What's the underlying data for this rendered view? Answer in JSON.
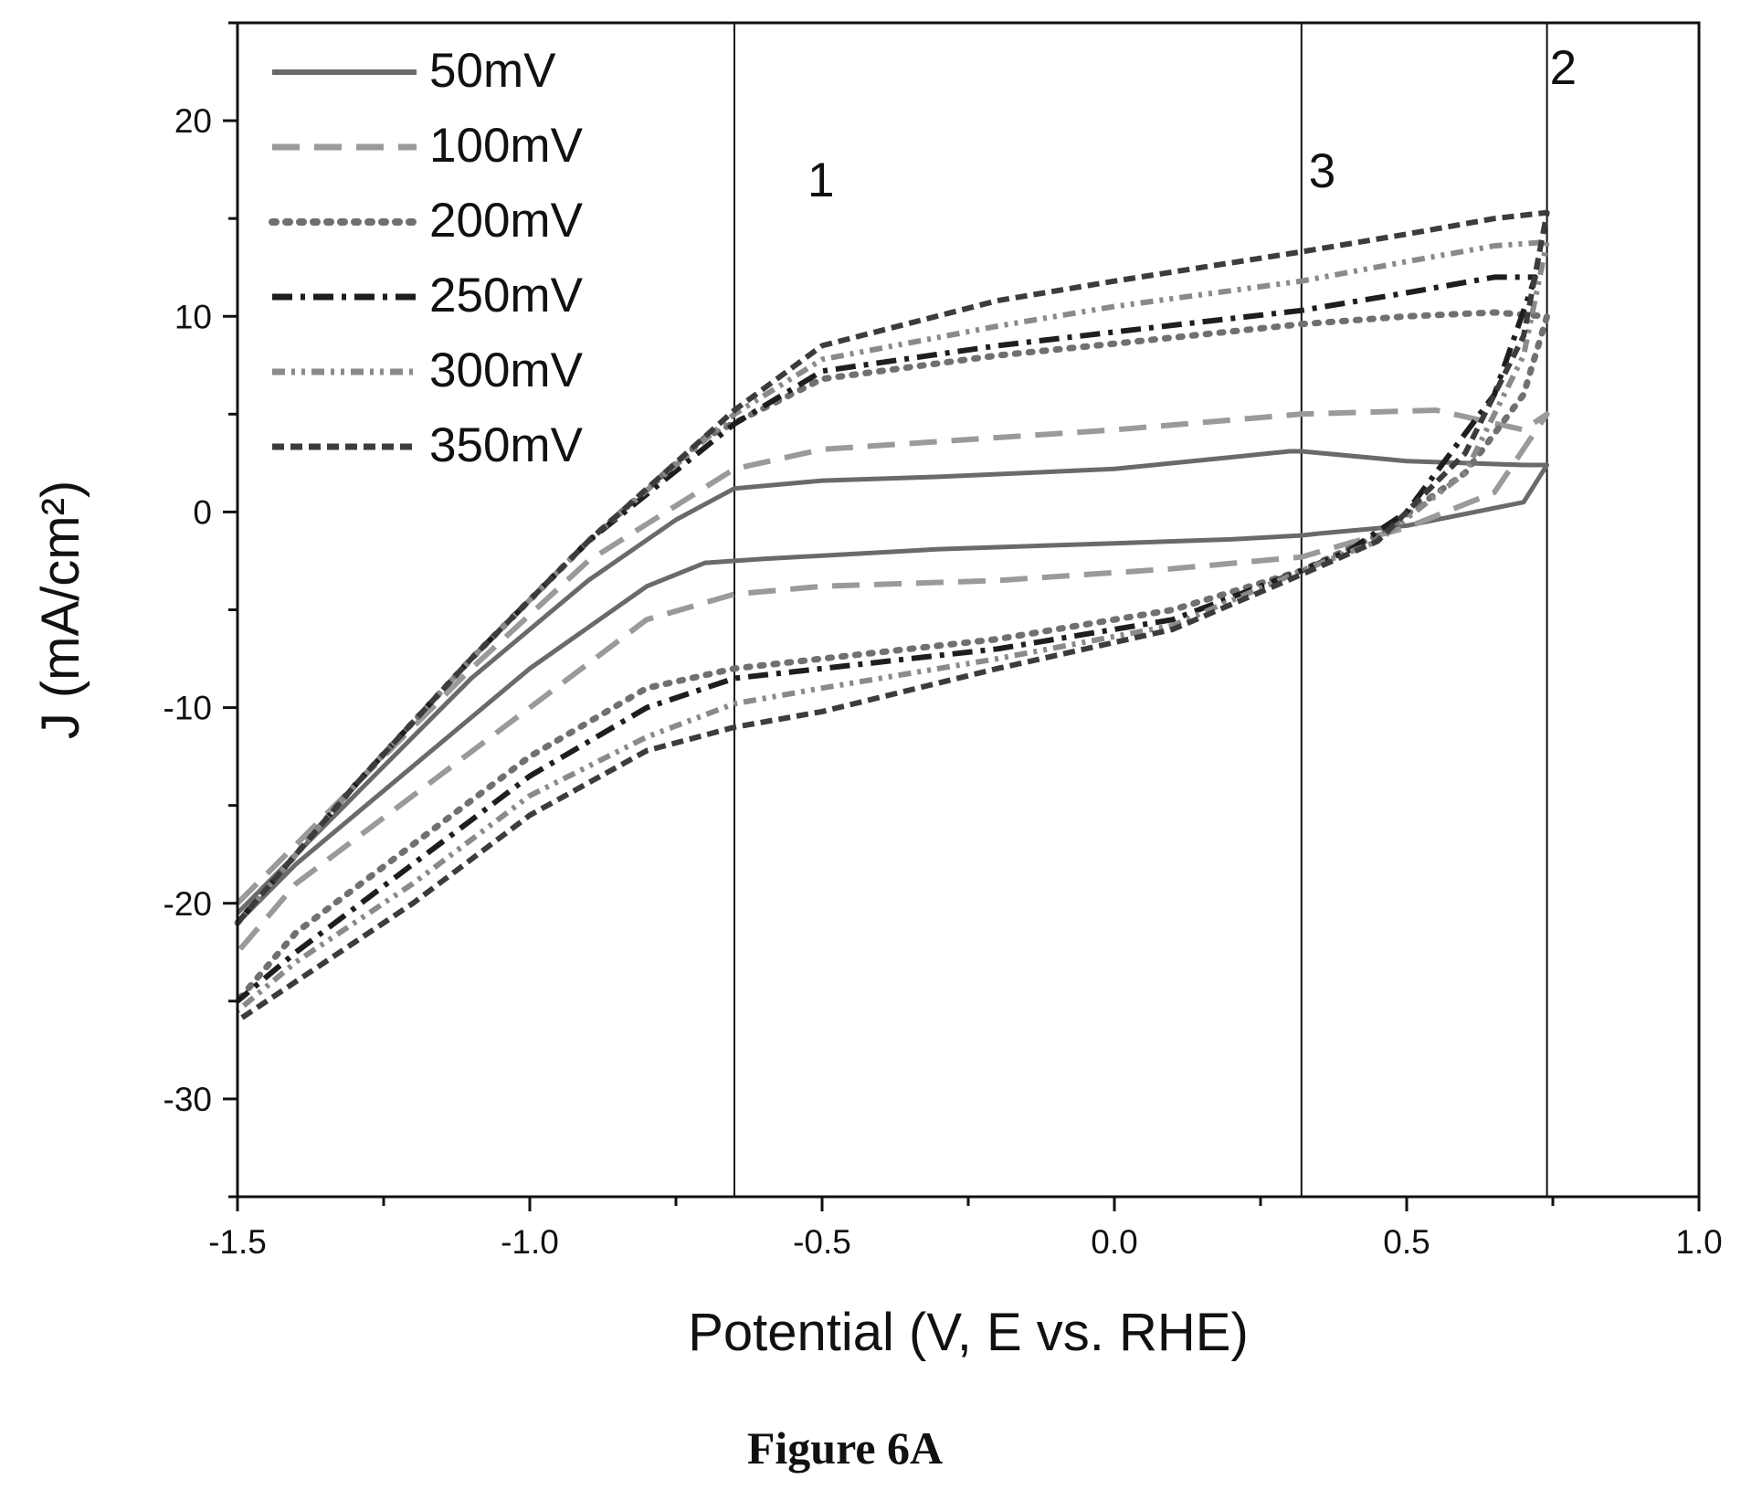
{
  "chart_data": {
    "type": "line",
    "title": "",
    "caption": "Figure 6A",
    "xlabel": "Potential (V, E vs. RHE)",
    "ylabel": "J (mA/cm²)",
    "xlim": [
      -1.5,
      1.0
    ],
    "ylim": [
      -35,
      25
    ],
    "xticks": [
      -1.5,
      -1.0,
      -0.5,
      0.0,
      0.5,
      1.0
    ],
    "xtick_labels": [
      "-1.5",
      "-1.0",
      "-0.5",
      "0.0",
      "0.5",
      "1.0"
    ],
    "yticks": [
      -30,
      -20,
      -10,
      0,
      10,
      20
    ],
    "ytick_labels": [
      "-30",
      "-20",
      "-10",
      "0",
      "10",
      "20"
    ],
    "grid": false,
    "legend_position": "top-left",
    "vertical_markers": [
      {
        "x": -0.65,
        "label": "1"
      },
      {
        "x": 0.32,
        "label": "3"
      },
      {
        "x": 0.74,
        "label": "2"
      }
    ],
    "series": [
      {
        "name": "50mV",
        "color": "#6a6a6a",
        "style": "solid",
        "x": [
          -1.5,
          -1.3,
          -1.1,
          -0.9,
          -0.75,
          -0.65,
          -0.5,
          -0.3,
          0.0,
          0.2,
          0.3,
          0.32,
          0.5,
          0.7,
          0.74,
          0.7,
          0.5,
          0.35,
          0.32,
          0.2,
          0.0,
          -0.3,
          -0.6,
          -0.7,
          -0.8,
          -1.0,
          -1.2,
          -1.4,
          -1.5
        ],
        "y": [
          -20.5,
          -14.5,
          -8.5,
          -3.5,
          -0.4,
          1.2,
          1.6,
          1.8,
          2.2,
          2.8,
          3.1,
          3.1,
          2.6,
          2.4,
          2.4,
          0.5,
          -0.7,
          -1.1,
          -1.2,
          -1.4,
          -1.6,
          -1.9,
          -2.4,
          -2.6,
          -3.8,
          -8.0,
          -13.0,
          -18.0,
          -21.0
        ]
      },
      {
        "name": "100mV",
        "color": "#9a9a9a",
        "style": "dashed",
        "x": [
          -1.5,
          -1.3,
          -1.1,
          -0.9,
          -0.65,
          -0.5,
          -0.2,
          0.0,
          0.32,
          0.55,
          0.7,
          0.74,
          0.65,
          0.5,
          0.4,
          0.32,
          0.1,
          -0.2,
          -0.5,
          -0.65,
          -0.8,
          -1.0,
          -1.2,
          -1.4,
          -1.5
        ],
        "y": [
          -20.0,
          -14.0,
          -8.0,
          -2.5,
          2.2,
          3.2,
          3.8,
          4.2,
          5.0,
          5.2,
          4.2,
          5.0,
          1.0,
          -0.8,
          -1.6,
          -2.3,
          -2.9,
          -3.5,
          -3.8,
          -4.2,
          -5.5,
          -10.0,
          -14.5,
          -19.0,
          -22.5
        ]
      },
      {
        "name": "200mV",
        "color": "#707070",
        "style": "dotted",
        "x": [
          -1.5,
          -1.3,
          -1.1,
          -0.9,
          -0.7,
          -0.5,
          -0.2,
          0.0,
          0.32,
          0.5,
          0.65,
          0.74,
          0.7,
          0.6,
          0.45,
          0.32,
          0.1,
          -0.2,
          -0.5,
          -0.65,
          -0.8,
          -1.0,
          -1.2,
          -1.4,
          -1.5
        ],
        "y": [
          -21.0,
          -14.0,
          -7.5,
          -1.5,
          3.8,
          6.8,
          8.0,
          8.6,
          9.6,
          10.0,
          10.2,
          10.0,
          6.0,
          2.0,
          -1.2,
          -3.0,
          -5.0,
          -6.5,
          -7.5,
          -8.0,
          -9.0,
          -12.5,
          -17.0,
          -21.5,
          -25.0
        ]
      },
      {
        "name": "250mV",
        "color": "#1e1e1e",
        "style": "dashdot",
        "x": [
          -1.5,
          -1.3,
          -1.1,
          -0.9,
          -0.65,
          -0.5,
          -0.2,
          0.0,
          0.32,
          0.5,
          0.65,
          0.72,
          0.65,
          0.5,
          0.4,
          0.32,
          0.1,
          -0.2,
          -0.5,
          -0.65,
          -0.8,
          -1.0,
          -1.2,
          -1.4,
          -1.5
        ],
        "y": [
          -21.0,
          -14.0,
          -7.5,
          -1.5,
          4.5,
          7.2,
          8.5,
          9.2,
          10.3,
          11.2,
          12.0,
          12.0,
          6.0,
          0.0,
          -2.0,
          -3.0,
          -5.5,
          -7.0,
          -8.0,
          -8.5,
          -10.0,
          -13.5,
          -18.0,
          -22.5,
          -25.0
        ]
      },
      {
        "name": "300mV",
        "color": "#8a8a8a",
        "style": "dashdotdot",
        "x": [
          -1.5,
          -1.3,
          -1.1,
          -0.9,
          -0.65,
          -0.5,
          -0.2,
          0.0,
          0.32,
          0.5,
          0.65,
          0.74,
          0.7,
          0.6,
          0.45,
          0.32,
          0.1,
          -0.2,
          -0.5,
          -0.65,
          -0.8,
          -1.0,
          -1.2,
          -1.4,
          -1.5
        ],
        "y": [
          -21.0,
          -14.0,
          -7.5,
          -1.5,
          5.0,
          7.8,
          9.5,
          10.5,
          11.8,
          12.8,
          13.6,
          13.8,
          8.0,
          2.0,
          -1.5,
          -3.0,
          -5.8,
          -7.5,
          -9.0,
          -9.8,
          -11.5,
          -14.5,
          -19.0,
          -23.0,
          -25.5
        ]
      },
      {
        "name": "350mV",
        "color": "#3c3c3c",
        "style": "shortdash",
        "x": [
          -1.5,
          -1.3,
          -1.1,
          -0.9,
          -0.65,
          -0.5,
          -0.2,
          0.0,
          0.32,
          0.5,
          0.65,
          0.74,
          0.7,
          0.6,
          0.45,
          0.32,
          0.1,
          -0.2,
          -0.5,
          -0.65,
          -0.8,
          -1.0,
          -1.2,
          -1.4,
          -1.5
        ],
        "y": [
          -21.0,
          -14.0,
          -7.5,
          -1.5,
          5.2,
          8.5,
          10.8,
          11.8,
          13.3,
          14.2,
          15.0,
          15.3,
          9.0,
          3.0,
          -1.5,
          -3.2,
          -6.0,
          -8.0,
          -10.2,
          -11.0,
          -12.2,
          -15.5,
          -20.0,
          -24.0,
          -26.0
        ]
      }
    ]
  }
}
